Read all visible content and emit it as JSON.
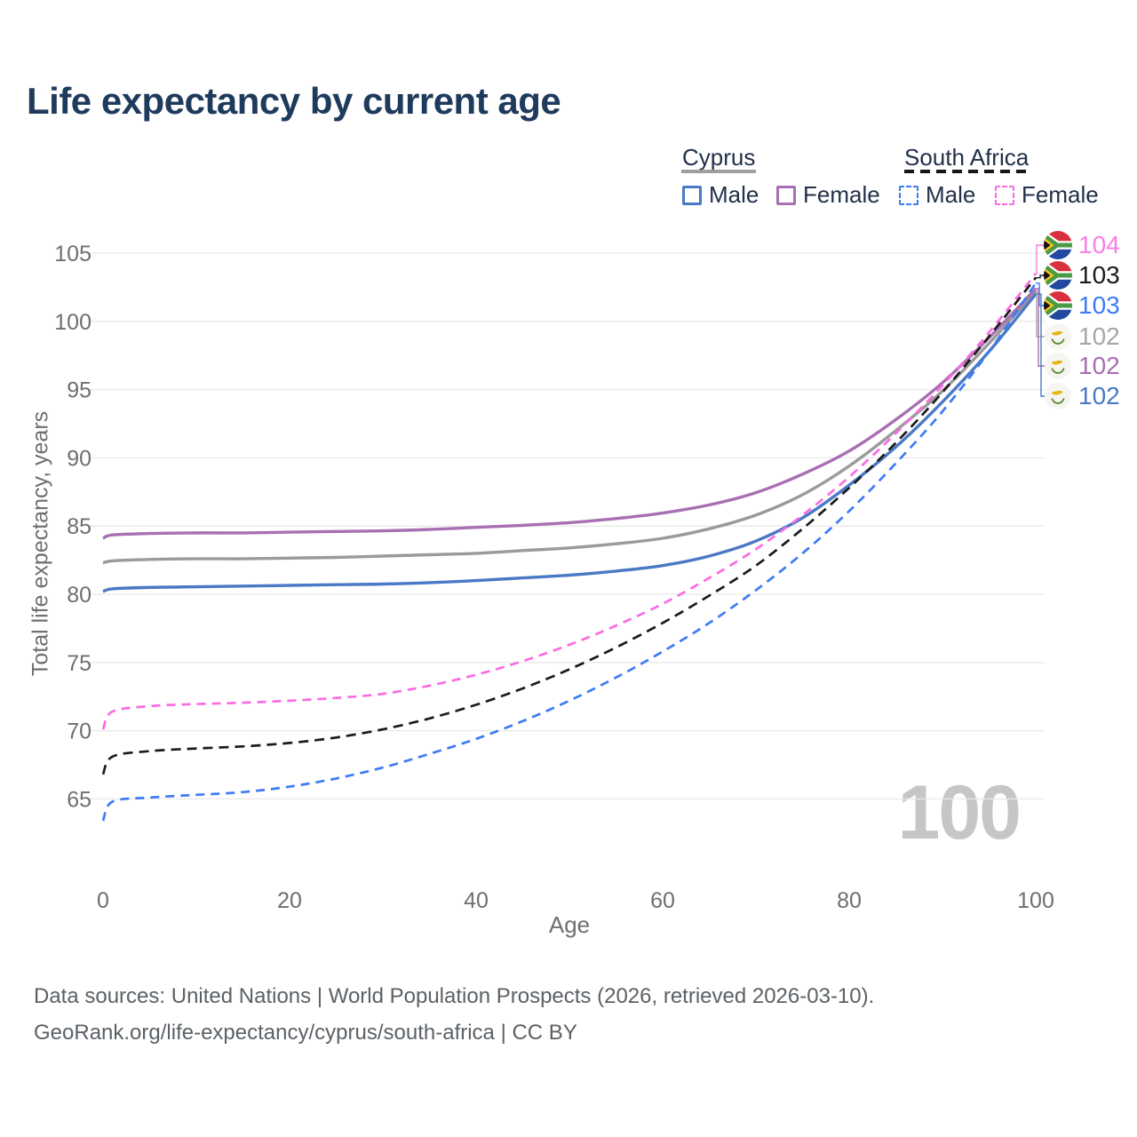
{
  "title": "Life expectancy by current age",
  "legend": {
    "cyprus": {
      "label": "Cyprus",
      "male": "Male",
      "female": "Female",
      "line_color": "#9e9e9e"
    },
    "south_africa": {
      "label": "South Africa",
      "male": "Male",
      "female": "Female",
      "line_color": "#161616"
    }
  },
  "watermark": "100",
  "source": {
    "line1": "Data sources: United Nations | World Population Prospects (2026, retrieved 2026-03-10).",
    "line2": "GeoRank.org/life-expectancy/cyprus/south-africa | CC BY"
  },
  "end_labels": [
    {
      "value": "104",
      "color": "#fb7de4",
      "flag": "south-africa",
      "series": "sa_female"
    },
    {
      "value": "103",
      "color": "#1b1b1b",
      "flag": "south-africa",
      "series": "sa_both"
    },
    {
      "value": "103",
      "color": "#3d7bf5",
      "flag": "south-africa",
      "series": "sa_male"
    },
    {
      "value": "102",
      "color": "#a6a6a6",
      "flag": "cyprus",
      "series": "cy_both"
    },
    {
      "value": "102",
      "color": "#a86fb3",
      "flag": "cyprus",
      "series": "cy_female"
    },
    {
      "value": "102",
      "color": "#4a79c5",
      "flag": "cyprus",
      "series": "cy_male"
    }
  ],
  "chart_data": {
    "type": "line",
    "title": "Life expectancy by current age",
    "xlabel": "Age",
    "ylabel": "Total life expectancy, years",
    "xlim": [
      0,
      100
    ],
    "ylim": [
      65,
      105
    ],
    "x_ticks": [
      0,
      20,
      40,
      60,
      80,
      100
    ],
    "y_ticks": [
      65,
      70,
      75,
      80,
      85,
      90,
      95,
      100,
      105
    ],
    "grid": "horizontal-only",
    "legend_position": "top-right",
    "x": [
      0,
      1,
      5,
      10,
      15,
      20,
      25,
      30,
      35,
      40,
      45,
      50,
      55,
      60,
      65,
      70,
      75,
      80,
      85,
      90,
      95,
      100
    ],
    "series": [
      {
        "key": "cy_both",
        "name": "Cyprus — both sexes",
        "color": "#9a9a9a",
        "dashed": false,
        "values": [
          82.3,
          82.45,
          82.55,
          82.6,
          82.6,
          82.65,
          82.7,
          82.8,
          82.9,
          83.0,
          83.2,
          83.4,
          83.7,
          84.1,
          84.8,
          85.8,
          87.3,
          89.4,
          92.0,
          94.9,
          98.4,
          102.2
        ]
      },
      {
        "key": "cy_male",
        "name": "Cyprus — male",
        "color": "#4a79c5",
        "dashed": false,
        "values": [
          80.2,
          80.4,
          80.5,
          80.55,
          80.6,
          80.65,
          80.7,
          80.75,
          80.85,
          81.0,
          81.2,
          81.4,
          81.7,
          82.1,
          82.8,
          83.9,
          85.6,
          88.0,
          90.8,
          94.1,
          97.8,
          102.0
        ]
      },
      {
        "key": "cy_female",
        "name": "Cyprus — female",
        "color": "#a86fb3",
        "dashed": false,
        "values": [
          84.1,
          84.35,
          84.45,
          84.5,
          84.5,
          84.55,
          84.6,
          84.65,
          84.75,
          84.9,
          85.05,
          85.25,
          85.55,
          85.95,
          86.55,
          87.45,
          88.8,
          90.5,
          92.8,
          95.5,
          98.8,
          102.4
        ]
      },
      {
        "key": "sa_male",
        "name": "South Africa — male",
        "color": "#3d7bf5",
        "dashed": true,
        "values": [
          63.4,
          64.8,
          65.1,
          65.3,
          65.5,
          65.9,
          66.5,
          67.3,
          68.3,
          69.4,
          70.7,
          72.2,
          73.9,
          75.8,
          77.9,
          80.3,
          83.0,
          86.1,
          89.6,
          93.4,
          97.8,
          102.8
        ]
      },
      {
        "key": "sa_female",
        "name": "South Africa — female",
        "color": "#fb6be3",
        "dashed": true,
        "values": [
          70.1,
          71.4,
          71.8,
          71.95,
          72.05,
          72.2,
          72.4,
          72.7,
          73.3,
          74.1,
          75.1,
          76.3,
          77.7,
          79.3,
          81.2,
          83.3,
          85.8,
          88.6,
          91.8,
          95.3,
          99.2,
          103.5
        ]
      },
      {
        "key": "sa_both",
        "name": "South Africa — both sexes",
        "color": "#1b1b1b",
        "dashed": true,
        "values": [
          66.8,
          68.1,
          68.5,
          68.7,
          68.85,
          69.1,
          69.5,
          70.1,
          70.9,
          71.9,
          73.1,
          74.5,
          76.1,
          77.9,
          79.9,
          82.1,
          84.8,
          87.8,
          91.1,
          94.8,
          98.9,
          103.2
        ]
      }
    ]
  }
}
